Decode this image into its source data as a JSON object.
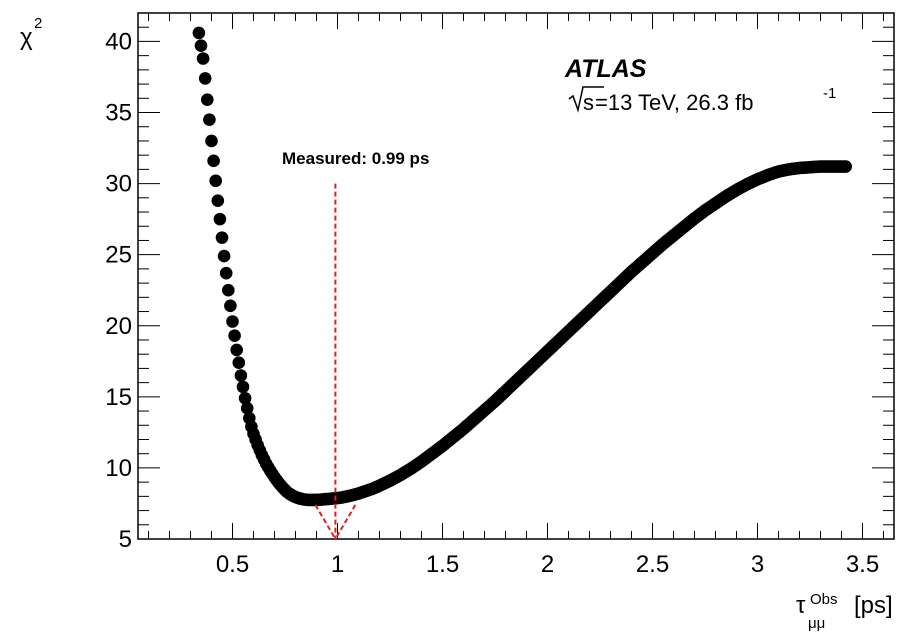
{
  "chart_data": {
    "type": "scatter",
    "xlabel": {
      "symbol": "τ",
      "subscript": "μμ",
      "superscript": "Obs",
      "unit": "[ps]"
    },
    "ylabel": {
      "symbol": "χ",
      "superscript": "2"
    },
    "xlim": [
      0.05,
      3.65
    ],
    "ylim": [
      5,
      42
    ],
    "xticks": [
      0.5,
      1,
      1.5,
      2,
      2.5,
      3,
      3.5
    ],
    "xtick_labels": [
      "0.5",
      "1",
      "1.5",
      "2",
      "2.5",
      "3",
      "3.5"
    ],
    "yticks": [
      5,
      10,
      15,
      20,
      25,
      30,
      35,
      40
    ],
    "ytick_labels": [
      "5",
      "10",
      "15",
      "20",
      "25",
      "30",
      "35",
      "40"
    ],
    "grid": false,
    "annotations": {
      "experiment": "ATLAS",
      "energy_sqrt": "s",
      "energy_text": "=13 TeV, 26.3 fb",
      "energy_superscript": "-1",
      "measured_label": "Measured: 0.99 ps"
    },
    "measured_value": 0.99,
    "measured_line_top": 30,
    "marker_color": "#000000",
    "line_color": "#e02020",
    "series": [
      {
        "x": [
          0.34,
          0.36,
          0.37,
          0.38,
          0.39,
          0.4,
          0.41,
          0.42,
          0.43,
          0.44,
          0.45,
          0.46,
          0.47,
          0.48,
          0.49,
          0.5,
          0.51,
          0.52,
          0.53,
          0.54,
          0.55,
          0.56,
          0.57,
          0.58,
          0.59,
          0.6,
          0.62,
          0.64,
          0.66,
          0.68,
          0.7,
          0.72,
          0.74,
          0.76,
          0.78,
          0.8,
          0.82,
          0.84,
          0.86,
          0.88,
          0.9,
          0.92,
          0.94,
          0.96,
          0.98,
          1.0,
          1.02,
          1.04,
          1.06,
          1.08,
          1.1,
          1.12,
          1.14,
          1.16,
          1.18,
          1.2,
          1.25,
          1.3,
          1.35,
          1.4,
          1.45,
          1.5,
          1.55,
          1.6,
          1.65,
          1.7,
          1.75,
          1.8,
          1.85,
          1.9,
          1.95,
          2.0,
          2.05,
          2.1,
          2.15,
          2.2,
          2.25,
          2.3,
          2.35,
          2.4,
          2.45,
          2.5,
          2.55,
          2.6,
          2.65,
          2.7,
          2.75,
          2.8,
          2.85,
          2.9,
          2.95,
          3.0,
          3.05,
          3.1,
          3.15,
          3.2,
          3.25,
          3.3,
          3.35,
          3.38,
          3.4,
          3.42
        ],
        "y": [
          40.6,
          38.8,
          37.4,
          35.9,
          34.5,
          33.0,
          31.6,
          30.2,
          28.8,
          27.5,
          26.2,
          24.9,
          23.7,
          22.5,
          21.4,
          20.3,
          19.3,
          18.3,
          17.4,
          16.5,
          15.7,
          14.9,
          14.2,
          13.5,
          12.9,
          12.4,
          11.6,
          10.9,
          10.3,
          9.8,
          9.35,
          8.95,
          8.6,
          8.3,
          8.1,
          7.95,
          7.85,
          7.78,
          7.75,
          7.75,
          7.75,
          7.77,
          7.8,
          7.82,
          7.85,
          7.88,
          7.92,
          7.98,
          8.05,
          8.12,
          8.2,
          8.3,
          8.4,
          8.5,
          8.62,
          8.75,
          9.1,
          9.5,
          9.95,
          10.45,
          11.0,
          11.55,
          12.15,
          12.75,
          13.4,
          14.05,
          14.7,
          15.4,
          16.1,
          16.8,
          17.5,
          18.2,
          18.9,
          19.6,
          20.3,
          21.0,
          21.7,
          22.4,
          23.1,
          23.8,
          24.45,
          25.1,
          25.75,
          26.35,
          26.95,
          27.55,
          28.1,
          28.6,
          29.1,
          29.55,
          29.95,
          30.3,
          30.6,
          30.85,
          31.0,
          31.1,
          31.15,
          31.2,
          31.2,
          31.2,
          31.2,
          31.2
        ]
      }
    ]
  }
}
